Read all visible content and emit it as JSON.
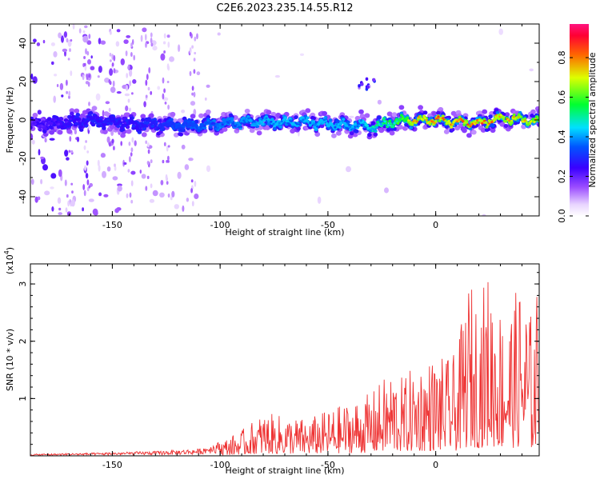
{
  "chart_data": [
    {
      "type": "heatmap",
      "title": "C2E6.2023.235.14.55.R12",
      "xlabel": "Height of straight line (km)",
      "ylabel": "Frequency (Hz)",
      "xlim": [
        -188,
        48
      ],
      "ylim": [
        -50,
        50
      ],
      "xticks": [
        -150,
        -100,
        -50,
        0
      ],
      "yticks": [
        -40,
        -20,
        0,
        20,
        40
      ],
      "colorbar": {
        "label": "Normalized spectral amplitude",
        "range": [
          0,
          0.97
        ],
        "ticks": [
          0.0,
          0.2,
          0.4,
          0.6,
          0.8
        ],
        "colormap": [
          "#ffffff",
          "#e6ccff",
          "#8a2be2",
          "#3a00ff",
          "#0000ff",
          "#00ffff",
          "#00ff00",
          "#ffff00",
          "#ff0000",
          "#ff1493"
        ]
      },
      "ridge": {
        "x": [
          -188,
          -160,
          -140,
          -120,
          -100,
          -80,
          -60,
          -50,
          -40,
          -35,
          -30,
          -20,
          -10,
          0,
          10,
          20,
          30,
          40,
          48
        ],
        "freq_hz": [
          -3,
          0,
          -2,
          -3,
          -2,
          -1,
          -1,
          -2,
          -3,
          -2,
          -4,
          -1,
          0,
          0,
          -1,
          -2,
          1,
          0,
          -1
        ],
        "peak_amplitude": [
          0.25,
          0.3,
          0.3,
          0.35,
          0.4,
          0.45,
          0.45,
          0.45,
          0.45,
          0.45,
          0.5,
          0.6,
          0.85,
          0.9,
          0.9,
          0.9,
          0.85,
          0.85,
          0.8
        ]
      }
    },
    {
      "type": "line",
      "xlabel": "Height of straight line (km)",
      "ylabel": "SNR (10 * v/v)",
      "ylabel_scale": "(x10",
      "ylabel_scale_exp": "4",
      "ylabel_scale_close": ")",
      "xlim": [
        -188,
        48
      ],
      "ylim": [
        0,
        3.35
      ],
      "xticks": [
        -150,
        -100,
        -50,
        0
      ],
      "yticks": [
        1,
        2,
        3
      ],
      "color": "#ee3333",
      "envelope": {
        "x": [
          -188,
          -160,
          -130,
          -110,
          -100,
          -90,
          -80,
          -70,
          -60,
          -50,
          -40,
          -30,
          -20,
          -15,
          -10,
          -5,
          0,
          5,
          10,
          15,
          20,
          25,
          30,
          35,
          40,
          45,
          48
        ],
        "peak": [
          0.03,
          0.05,
          0.08,
          0.12,
          0.25,
          0.45,
          0.75,
          0.7,
          0.65,
          0.8,
          0.95,
          1.1,
          1.55,
          1.35,
          1.6,
          1.7,
          1.75,
          1.7,
          1.8,
          3.1,
          2.8,
          3.3,
          2.65,
          2.7,
          3.1,
          2.4,
          3.2
        ]
      }
    }
  ]
}
